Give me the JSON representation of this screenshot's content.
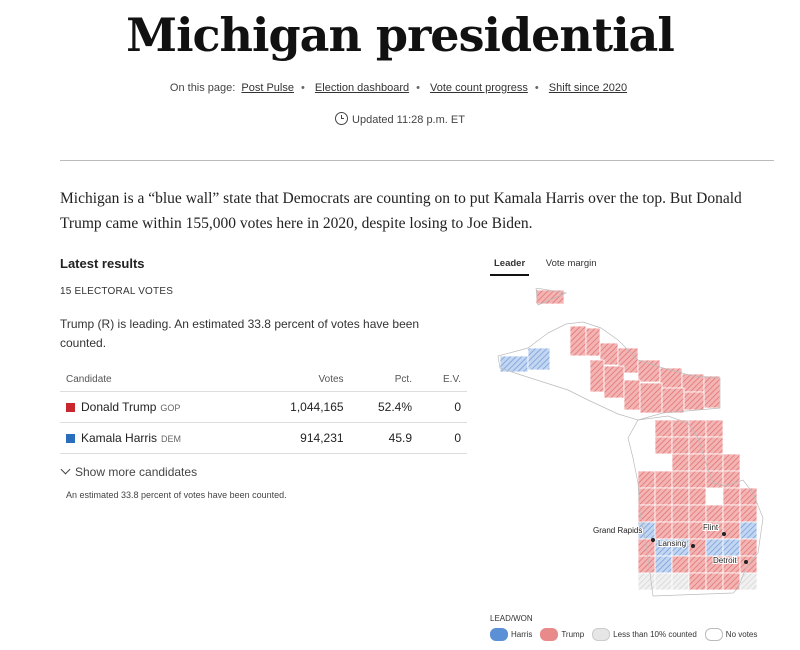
{
  "header": {
    "title": "Michigan presidential",
    "on_this_page_label": "On this page:",
    "links": [
      "Post Pulse",
      "Election dashboard",
      "Vote count progress",
      "Shift since 2020"
    ],
    "updated": "Updated 11:28 p.m. ET"
  },
  "intro": "Michigan is a “blue wall” state that Democrats are counting on to put Kamala Harris over the top. But Donald Trump came within 155,000 votes here in 2020, despite losing to Joe Biden.",
  "results": {
    "heading": "Latest results",
    "electoral_votes": "15 ELECTORAL VOTES",
    "status": "Trump (R) is leading. An estimated 33.8 percent of votes have been counted.",
    "columns": [
      "Candidate",
      "Votes",
      "Pct.",
      "E.V."
    ],
    "rows": [
      {
        "name": "Donald Trump",
        "party": "GOP",
        "votes": "1,044,165",
        "pct": "52.4%",
        "ev": "0",
        "color": "#c8282d"
      },
      {
        "name": "Kamala Harris",
        "party": "DEM",
        "votes": "914,231",
        "pct": "45.9",
        "ev": "0",
        "color": "#2a6dbd"
      }
    ],
    "show_more": "Show more candidates",
    "footnote": "An estimated 33.8 percent of votes have been counted."
  },
  "map": {
    "tabs": [
      "Leader",
      "Vote margin"
    ],
    "cities": [
      "Grand Rapids",
      "Lansing",
      "Flint",
      "Detroit"
    ],
    "legend_title": "LEAD/WON",
    "legend": [
      {
        "label": "Harris",
        "color": "#5b8fd6"
      },
      {
        "label": "Trump",
        "color": "#e98a8a"
      },
      {
        "label": "Less than 10% counted",
        "color": "#e6e6e6"
      },
      {
        "label": "No votes",
        "color": "#ffffff"
      }
    ]
  }
}
